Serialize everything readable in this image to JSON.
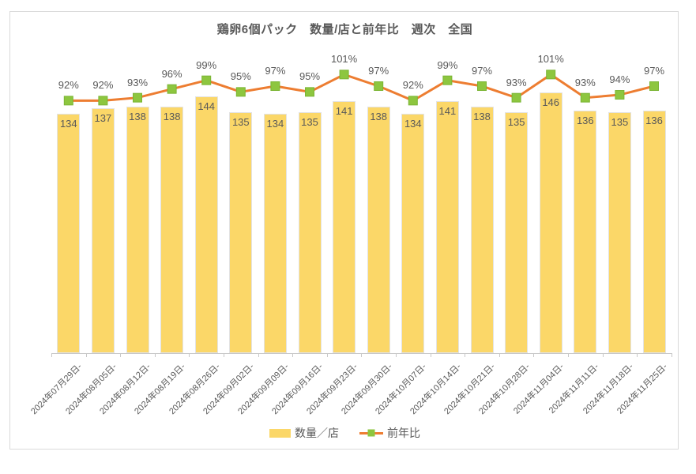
{
  "chart_data": {
    "type": "bar",
    "subtype": "bar+line-combo",
    "title": "鶏卵6個パック　数量/店と前年比　週次　全国",
    "categories": [
      "2024年07月29日-",
      "2024年08月05日-",
      "2024年08月12日-",
      "2024年08月19日-",
      "2024年08月26日-",
      "2024年09月02日-",
      "2024年09月09日-",
      "2024年09月16日-",
      "2024年09月23日-",
      "2024年09月30日-",
      "2024年10月07日-",
      "2024年10月14日-",
      "2024年10月21日-",
      "2024年10月28日-",
      "2024年11月04日-",
      "2024年11月11日-",
      "2024年11月18日-",
      "2024年11月25日-"
    ],
    "series": [
      {
        "name": "数量／店",
        "type": "bar",
        "values": [
          134,
          137,
          138,
          138,
          144,
          135,
          134,
          135,
          141,
          138,
          134,
          141,
          138,
          135,
          146,
          136,
          135,
          136
        ],
        "color": "#FBD768",
        "border_color": "#E3E3E3",
        "label_color": "#595959",
        "data_labels": "inside-end"
      },
      {
        "name": "前年比",
        "type": "line",
        "unit": "%",
        "values": [
          92,
          92,
          93,
          96,
          99,
          95,
          97,
          95,
          101,
          97,
          92,
          99,
          97,
          93,
          101,
          93,
          94,
          97
        ],
        "labels": [
          "92%",
          "92%",
          "93%",
          "96%",
          "99%",
          "95%",
          "97%",
          "95%",
          "101%",
          "97%",
          "92%",
          "99%",
          "97%",
          "93%",
          "101%",
          "93%",
          "94%",
          "97%"
        ],
        "line_color": "#ED7D31",
        "marker_color": "#8DC63F",
        "marker_border_color": "#7AB534",
        "label_color": "#595959",
        "data_labels": "above"
      }
    ],
    "grid": false,
    "y_axis_visible": false,
    "legend_position": "bottom",
    "x_tick_rotation_deg": 45,
    "axis_color": "#C8C8C8",
    "frame_border_color": "#D9D9D9",
    "background_color": "#FFFFFF",
    "text_color": "#595959"
  }
}
